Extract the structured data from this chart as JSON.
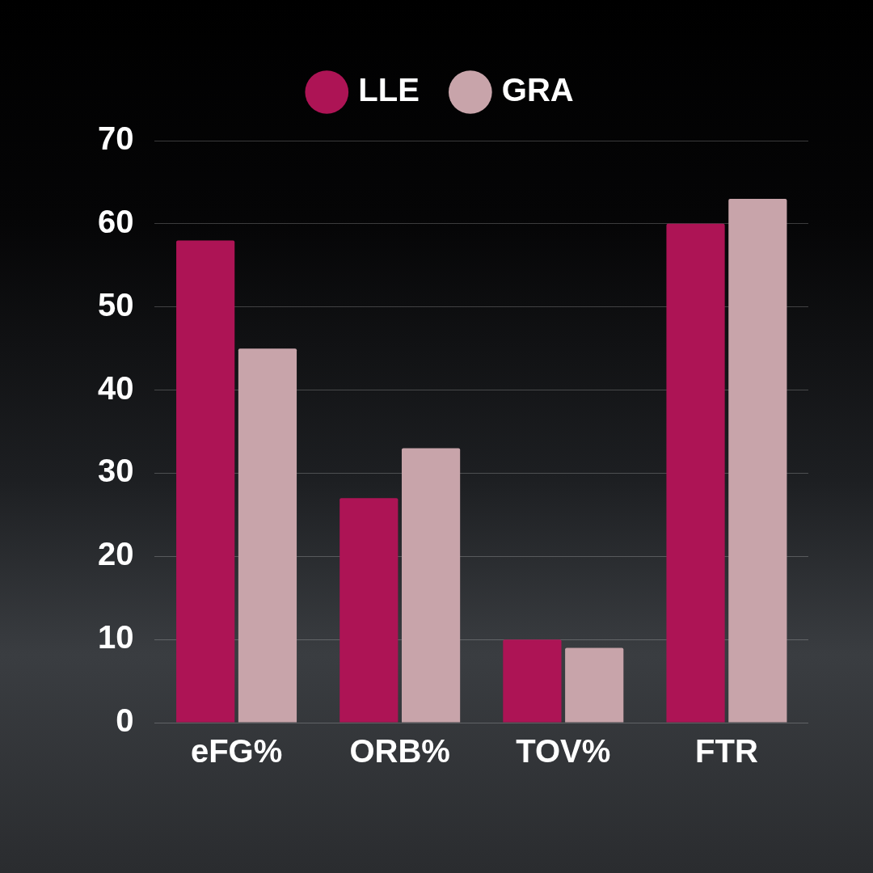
{
  "chart_data": {
    "type": "bar",
    "categories": [
      "eFG%",
      "ORB%",
      "TOV%",
      "FTR"
    ],
    "series": [
      {
        "name": "LLE",
        "color": "#ad1455",
        "values": [
          58,
          27,
          10,
          60
        ]
      },
      {
        "name": "GRA",
        "color": "#c8a4aa",
        "values": [
          45,
          33,
          9,
          63
        ]
      }
    ],
    "ylim": [
      0,
      70
    ],
    "yticks": [
      0,
      10,
      20,
      30,
      40,
      50,
      60,
      70
    ],
    "grid": "y",
    "legend": "top"
  }
}
